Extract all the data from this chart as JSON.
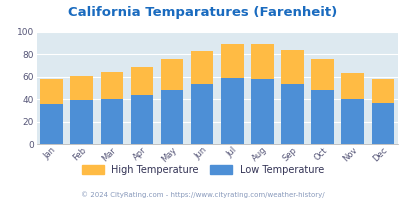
{
  "title": "California Temparatures (Farenheit)",
  "months": [
    "Jan",
    "Feb",
    "Mar",
    "Apr",
    "May",
    "Jun",
    "Jul",
    "Aug",
    "Sep",
    "Oct",
    "Nov",
    "Dec"
  ],
  "low_temps": [
    36,
    39,
    40,
    44,
    48,
    54,
    59,
    58,
    54,
    48,
    40,
    37
  ],
  "high_temps": [
    58,
    61,
    64,
    69,
    76,
    83,
    89,
    89,
    84,
    76,
    63,
    58
  ],
  "bar_color_low": "#4d8fd6",
  "bar_color_high": "#ffbb44",
  "title_color": "#1a6bbf",
  "plot_bg_color": "#dde9f0",
  "grid_color": "#ffffff",
  "footer_text": "© 2024 CityRating.com - https://www.cityrating.com/weather-history/",
  "footer_color": "#8899bb",
  "legend_high_label": "High Temperature",
  "legend_low_label": "Low Temperature",
  "legend_text_color": "#333355",
  "tick_label_color": "#555577",
  "ylim": [
    0,
    100
  ],
  "yticks": [
    0,
    20,
    40,
    60,
    80,
    100
  ]
}
